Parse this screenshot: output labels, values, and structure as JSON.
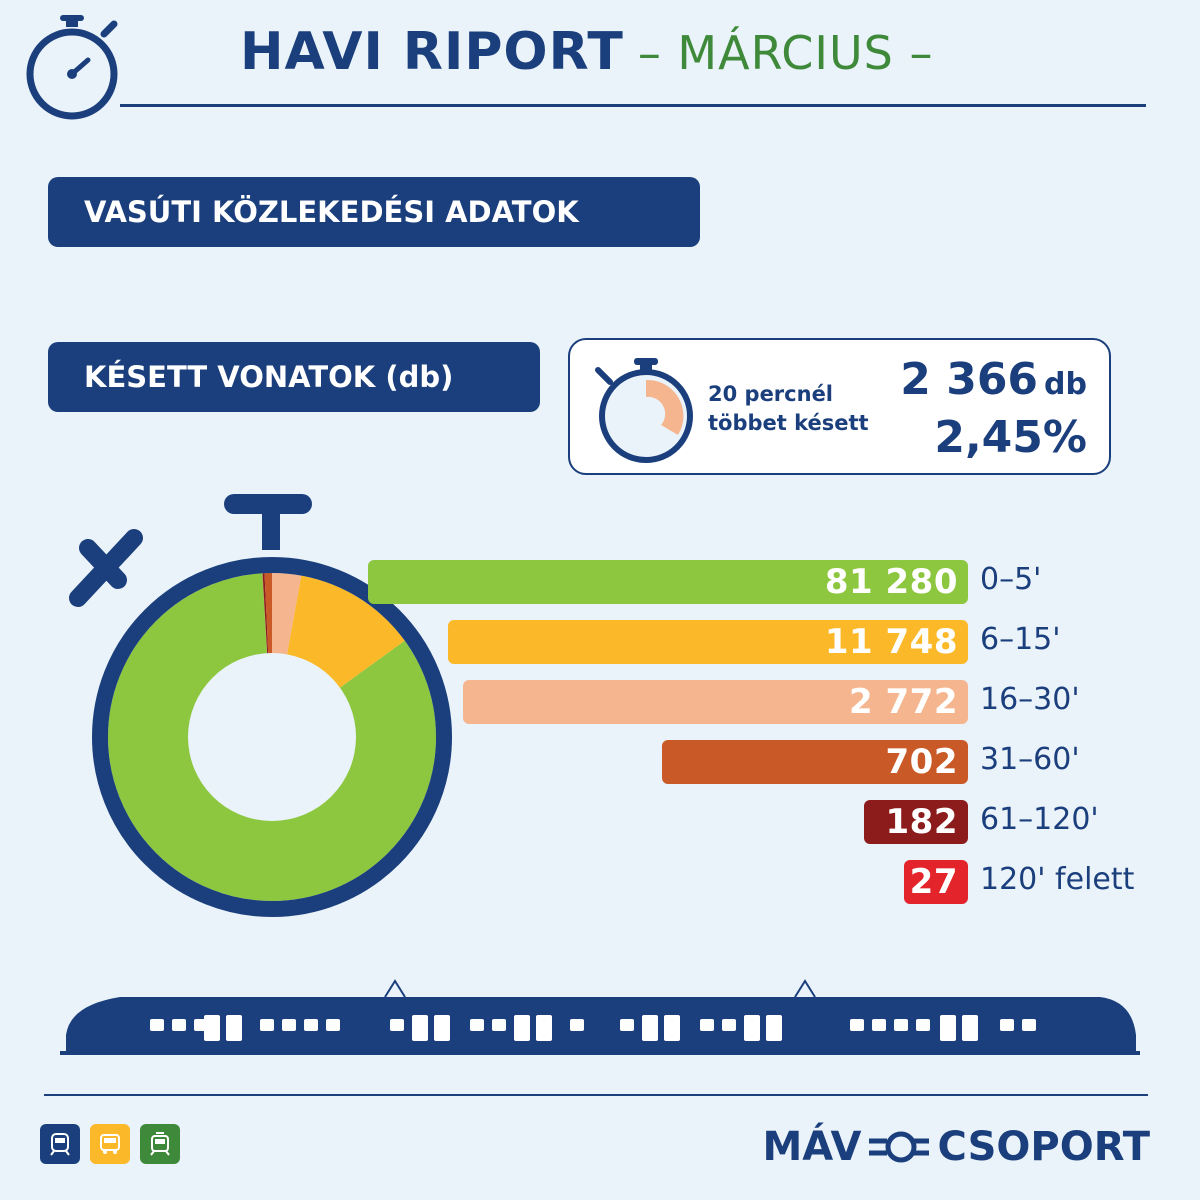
{
  "header": {
    "title": "HAVI RIPORT",
    "subtitle": "– MÁRCIUS –"
  },
  "section_title": "VASÚTI KÖZLEKEDÉSI ADATOK",
  "subsection_title": "KÉSETT VONATOK (db)",
  "highlight": {
    "label_line1": "20 percnél",
    "label_line2": "többet késett",
    "count": "2 366",
    "count_unit": "db",
    "percent": "2,45%"
  },
  "chart_data": {
    "type": "bar",
    "categories": [
      "0–5'",
      "6–15'",
      "16–30'",
      "31–60'",
      "61–120'",
      "120' felett"
    ],
    "values": [
      81280,
      11748,
      2772,
      702,
      182,
      27
    ],
    "value_labels": [
      "81 280",
      "11 748",
      "2 772",
      "702",
      "182",
      "27"
    ],
    "colors": [
      "#8dc63f",
      "#fbb829",
      "#f5b68f",
      "#c95a27",
      "#8c1b1b",
      "#e3242b"
    ],
    "title": "",
    "xlabel": "",
    "ylabel": "",
    "legend": "none",
    "grid": false
  },
  "colors": {
    "navy": "#1b3f7c",
    "green_text": "#3f8a3a",
    "background": "#eaf3fa"
  },
  "footer": {
    "brand_left": "MÁV",
    "brand_right": "CSOPORT",
    "icons": [
      "train-icon",
      "bus-icon",
      "tram-icon"
    ]
  }
}
